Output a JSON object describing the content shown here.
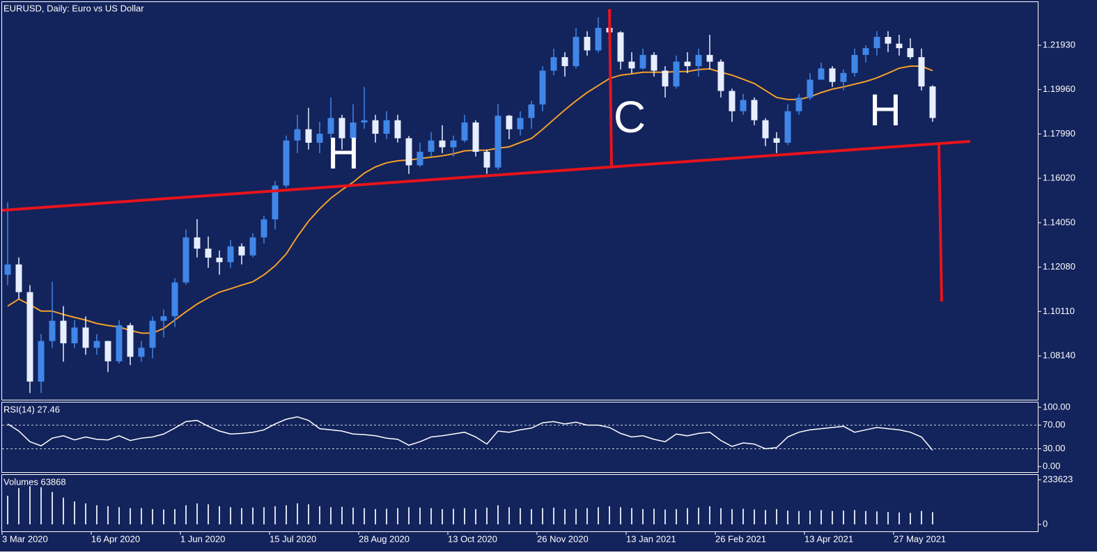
{
  "chart_data": [
    {
      "type": "candlestick",
      "title": "EURUSD, Daily:  Euro vs US Dollar",
      "categories": [
        "3 Mar 2020",
        null,
        null,
        null,
        null,
        null,
        null,
        null,
        "16 Apr 2020",
        null,
        null,
        null,
        null,
        null,
        null,
        null,
        "1 Jun 2020",
        null,
        null,
        null,
        null,
        null,
        null,
        null,
        "15 Jul 2020",
        null,
        null,
        null,
        null,
        null,
        null,
        null,
        "28 Aug 2020",
        null,
        null,
        null,
        null,
        null,
        null,
        null,
        "13 Oct 2020",
        null,
        null,
        null,
        null,
        null,
        null,
        null,
        "26 Nov 2020",
        null,
        null,
        null,
        null,
        null,
        null,
        null,
        "13 Jan 2021",
        null,
        null,
        null,
        null,
        null,
        null,
        null,
        "26 Feb 2021",
        null,
        null,
        null,
        null,
        null,
        null,
        null,
        "13 Apr 2021",
        null,
        null,
        null,
        null,
        null,
        null,
        null,
        "27 May 2021",
        null,
        null,
        null
      ],
      "open": [
        1.1174,
        1.122,
        1.1097,
        1.07,
        1.088,
        1.097,
        1.087,
        1.094,
        1.085,
        1.088,
        1.079,
        1.095,
        1.081,
        1.085,
        1.097,
        1.099,
        1.114,
        1.134,
        1.129,
        1.125,
        1.123,
        1.13,
        1.126,
        1.134,
        1.142,
        1.157,
        1.177,
        1.182,
        1.176,
        1.18,
        1.187,
        1.178,
        1.185,
        1.186,
        1.18,
        1.186,
        1.178,
        1.166,
        1.172,
        1.177,
        1.174,
        1.177,
        1.185,
        1.172,
        1.165,
        1.188,
        1.182,
        1.187,
        1.193,
        1.208,
        1.214,
        1.21,
        1.223,
        1.217,
        1.227,
        1.225,
        1.212,
        1.209,
        1.215,
        1.208,
        1.201,
        1.212,
        1.21,
        1.215,
        1.212,
        1.199,
        1.19,
        1.195,
        1.186,
        1.178,
        1.176,
        1.19,
        1.196,
        1.204,
        1.209,
        1.203,
        1.207,
        1.215,
        1.218,
        1.223,
        1.22,
        1.218,
        1.214,
        1.201
      ],
      "high": [
        1.1496,
        1.1251,
        1.1128,
        1.0911,
        1.1143,
        1.1035,
        1.0973,
        1.0989,
        1.0911,
        1.0881,
        1.0973,
        1.096,
        1.0881,
        1.0989,
        1.102,
        1.1159,
        1.1375,
        1.1421,
        1.1344,
        1.1282,
        1.1328,
        1.1313,
        1.1359,
        1.1436,
        1.1591,
        1.1792,
        1.1884,
        1.1915,
        1.1853,
        1.1961,
        1.1884,
        1.1931,
        1.2008,
        1.1884,
        1.19,
        1.1884,
        1.179,
        1.1761,
        1.1807,
        1.1838,
        1.1792,
        1.1884,
        1.186,
        1.173,
        1.1931,
        1.1884,
        1.19,
        1.1946,
        1.21,
        1.2178,
        1.2162,
        1.227,
        1.2255,
        1.2317,
        1.2347,
        1.2255,
        1.2162,
        1.2178,
        1.2162,
        1.21,
        1.2147,
        1.2162,
        1.2178,
        1.2239,
        1.213,
        1.2,
        1.1977,
        1.1961,
        1.1869,
        1.1807,
        1.1931,
        1.1977,
        1.2069,
        1.2116,
        1.21,
        1.2085,
        1.2178,
        1.2193,
        1.2255,
        1.2255,
        1.2239,
        1.2224,
        1.2178,
        1.2015
      ],
      "low": [
        1.1128,
        1.1066,
        1.0649,
        1.0649,
        1.085,
        1.0788,
        1.085,
        1.0819,
        1.0819,
        1.0742,
        1.078,
        1.0773,
        1.0788,
        1.0803,
        1.0896,
        1.0942,
        1.113,
        1.1251,
        1.1205,
        1.1174,
        1.1205,
        1.122,
        1.1251,
        1.1313,
        1.1375,
        1.156,
        1.1714,
        1.173,
        1.1714,
        1.178,
        1.173,
        1.177,
        1.1822,
        1.1761,
        1.1776,
        1.1761,
        1.1622,
        1.1653,
        1.1699,
        1.1714,
        1.1699,
        1.1761,
        1.1699,
        1.1622,
        1.164,
        1.1776,
        1.1792,
        1.1822,
        1.19,
        1.206,
        1.2054,
        1.209,
        1.2147,
        1.216,
        1.2224,
        1.2085,
        1.2069,
        1.2085,
        1.2054,
        1.1961,
        1.2,
        1.2069,
        1.2054,
        1.2085,
        1.1961,
        1.1853,
        1.1884,
        1.1838,
        1.1745,
        1.1714,
        1.175,
        1.1884,
        1.195,
        1.2039,
        1.2008,
        1.1992,
        1.2054,
        1.2116,
        1.2147,
        1.2162,
        1.2147,
        1.2131,
        1.1992,
        1.1853
      ],
      "close": [
        1.122,
        1.1097,
        1.07,
        1.088,
        1.097,
        1.087,
        1.094,
        1.085,
        1.088,
        1.079,
        1.095,
        1.081,
        1.085,
        1.097,
        1.099,
        1.114,
        1.134,
        1.129,
        1.125,
        1.123,
        1.13,
        1.126,
        1.134,
        1.142,
        1.157,
        1.177,
        1.182,
        1.176,
        1.18,
        1.187,
        1.178,
        1.185,
        1.186,
        1.18,
        1.186,
        1.178,
        1.166,
        1.172,
        1.177,
        1.174,
        1.177,
        1.185,
        1.172,
        1.165,
        1.188,
        1.182,
        1.187,
        1.193,
        1.208,
        1.214,
        1.21,
        1.223,
        1.217,
        1.227,
        1.225,
        1.212,
        1.209,
        1.215,
        1.208,
        1.201,
        1.212,
        1.21,
        1.215,
        1.212,
        1.199,
        1.19,
        1.195,
        1.186,
        1.178,
        1.176,
        1.19,
        1.196,
        1.204,
        1.209,
        1.203,
        1.207,
        1.215,
        1.218,
        1.223,
        1.22,
        1.218,
        1.214,
        1.201,
        1.187
      ],
      "up_color": "#3f86e8",
      "down_color": "#e6eeff",
      "series": [
        {
          "color": "#f5a02a",
          "values": [
            1.1035,
            1.1066,
            1.1041,
            1.1013,
            1.1013,
            1.0998,
            1.0985,
            1.0973,
            1.0958,
            1.0949,
            1.0942,
            1.0927,
            1.0915,
            1.0915,
            1.0936,
            1.0973,
            1.101,
            1.1044,
            1.1072,
            1.1097,
            1.1112,
            1.1128,
            1.1143,
            1.1174,
            1.1214,
            1.1267,
            1.1344,
            1.1412,
            1.1467,
            1.1514,
            1.1551,
            1.1585,
            1.1625,
            1.1653,
            1.1671,
            1.168,
            1.1683,
            1.169,
            1.1696,
            1.1702,
            1.1711,
            1.1724,
            1.1727,
            1.1727,
            1.1736,
            1.1742,
            1.1761,
            1.1779,
            1.1819,
            1.1863,
            1.1906,
            1.1946,
            1.1983,
            1.2014,
            1.2045,
            1.206,
            1.2066,
            1.2073,
            1.2073,
            1.2073,
            1.2076,
            1.2076,
            1.2085,
            1.2088,
            1.2073,
            1.206,
            1.2042,
            1.2023,
            1.1992,
            1.1961,
            1.1952,
            1.1952,
            1.1964,
            1.1983,
            1.1998,
            1.2008,
            1.202,
            1.2032,
            1.2048,
            1.2069,
            1.2091,
            1.21,
            1.21,
            1.208
          ]
        }
      ],
      "annotations": [
        "H",
        "C",
        "H"
      ],
      "ylim": [
        1.06195,
        1.23844
      ],
      "yticks": [
        {
          "value": 1.2193,
          "label": "1.21930"
        },
        {
          "value": 1.1996,
          "label": "1.19960"
        },
        {
          "value": 1.1799,
          "label": "1.17990"
        },
        {
          "value": 1.1602,
          "label": "1.16020"
        },
        {
          "value": 1.1405,
          "label": "1.14050"
        },
        {
          "value": 1.1208,
          "label": "1.12080"
        },
        {
          "value": 1.1011,
          "label": "1.10110"
        },
        {
          "value": 1.0814,
          "label": "1.08140"
        }
      ]
    },
    {
      "type": "line",
      "title": "RSI(14) 27.46",
      "color": "#ffffff",
      "values": [
        72,
        60,
        42,
        35,
        48,
        52,
        45,
        50,
        46,
        45,
        52,
        44,
        48,
        50,
        55,
        65,
        76,
        78,
        68,
        60,
        55,
        56,
        58,
        62,
        72,
        80,
        84,
        78,
        64,
        62,
        60,
        55,
        54,
        52,
        48,
        46,
        36,
        42,
        50,
        52,
        55,
        58,
        50,
        38,
        60,
        58,
        62,
        65,
        74,
        76,
        72,
        75,
        70,
        70,
        66,
        56,
        50,
        52,
        46,
        42,
        55,
        52,
        56,
        58,
        44,
        34,
        40,
        38,
        30,
        32,
        50,
        58,
        62,
        64,
        66,
        68,
        58,
        62,
        66,
        64,
        62,
        58,
        50,
        27.46
      ],
      "levels": [
        70,
        30
      ],
      "ylim": [
        0,
        100
      ],
      "yticks": [
        {
          "value": 100,
          "label": "100.00"
        },
        {
          "value": 70,
          "label": "70.00"
        },
        {
          "value": 30,
          "label": "30.00"
        },
        {
          "value": 0,
          "label": "0.00"
        }
      ]
    },
    {
      "type": "bar",
      "title": "Volumes 63868",
      "color": "#d6deee",
      "values": [
        150000,
        190000,
        200000,
        195000,
        170000,
        140000,
        120000,
        110000,
        100000,
        95000,
        90000,
        85000,
        85000,
        80000,
        78000,
        80000,
        100000,
        110000,
        105000,
        95000,
        90000,
        85000,
        88000,
        90000,
        95000,
        100000,
        110000,
        105000,
        95000,
        90000,
        92000,
        88000,
        85000,
        80000,
        82000,
        85000,
        90000,
        88000,
        85000,
        80000,
        82000,
        85000,
        80000,
        88000,
        100000,
        90000,
        85000,
        80000,
        85000,
        88000,
        80000,
        82000,
        85000,
        90000,
        95000,
        90000,
        85000,
        80000,
        82000,
        78000,
        80000,
        85000,
        88000,
        95000,
        85000,
        80000,
        82000,
        78000,
        75000,
        80000,
        72000,
        70000,
        72000,
        75000,
        70000,
        72000,
        75000,
        70000,
        68000,
        65000,
        62000,
        60000,
        70000,
        63868
      ],
      "ylim": [
        0,
        233623
      ],
      "yticks": [
        233623,
        0
      ]
    }
  ]
}
